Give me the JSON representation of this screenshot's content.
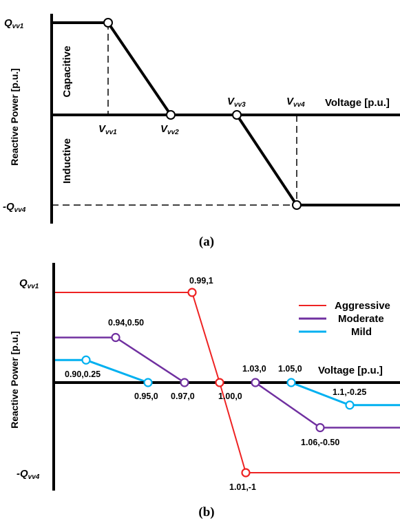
{
  "chart_data": [
    {
      "type": "line",
      "panel_label": "(a)",
      "xlabel": "Voltage [p.u.]",
      "ylabel": "Reactive Power [p.u.]",
      "region_labels": [
        "Capacitive",
        "Inductive"
      ],
      "y_tick_labels": {
        "top": "Q",
        "top_sub": "vv1",
        "bottom": "-Q",
        "bottom_sub": "vv4"
      },
      "point_labels": [
        {
          "main": "V",
          "sub": "vv1"
        },
        {
          "main": "V",
          "sub": "vv2"
        },
        {
          "main": "V",
          "sub": "vv3"
        },
        {
          "main": "V",
          "sub": "vv4"
        }
      ],
      "series": [
        {
          "x": [
            "start",
            "Vvv1",
            "Vvv2",
            "Vvv3",
            "Vvv4",
            "end"
          ],
          "y": [
            "Qvv1",
            "Qvv1",
            0,
            0,
            "-Qvv4",
            "-Qvv4"
          ]
        }
      ],
      "grid": false
    },
    {
      "type": "line",
      "panel_label": "(b)",
      "xlabel": "Voltage [p.u.]",
      "ylabel": "Reactive Power [p.u.]",
      "y_tick_labels": {
        "top": "Q",
        "top_sub": "vv1",
        "bottom": "-Q",
        "bottom_sub": "vv4"
      },
      "legend_position": "top-right",
      "grid": false,
      "series": [
        {
          "name": "Aggressive",
          "color": "#ee2222",
          "x": [
            0.99,
            1.0,
            1.01
          ],
          "y": [
            1,
            0,
            -1
          ]
        },
        {
          "name": "Moderate",
          "color": "#7030a0",
          "x": [
            0.94,
            0.97,
            1.03,
            1.06
          ],
          "y": [
            0.5,
            0,
            0,
            -0.5
          ]
        },
        {
          "name": "Mild",
          "color": "#00b0f0",
          "x": [
            0.9,
            0.95,
            1.05,
            1.1
          ],
          "y": [
            0.25,
            0,
            0,
            -0.25
          ]
        }
      ],
      "annotations": [
        "0.99,1",
        "0.94,0.50",
        "0.90,0.25",
        "0.95,0",
        "0.97,0",
        "1.00,0",
        "1.03,0",
        "1.05,0",
        "1.1,-0.25",
        "1.06,-0.50",
        "1.01,-1"
      ]
    }
  ]
}
